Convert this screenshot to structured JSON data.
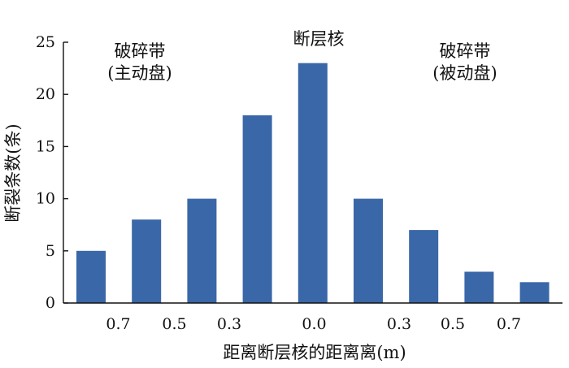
{
  "chart_data": {
    "type": "bar",
    "title": "",
    "xlabel": "距离断层核的距离离(m)",
    "ylabel": "断裂条数(条)",
    "ylim": [
      0,
      25
    ],
    "yticks": [
      0,
      5,
      10,
      15,
      20,
      25
    ],
    "x_tick_labels": [
      "0.7",
      "0.5",
      "0.3",
      "0.0",
      "0.3",
      "0.5",
      "0.7"
    ],
    "values": [
      5,
      8,
      10,
      18,
      23,
      10,
      7,
      3,
      2
    ],
    "bar_color": "#3a67a8",
    "grid": false,
    "legend": "none",
    "annotations": [
      {
        "id": "left",
        "lines": [
          "破碎带",
          "(主动盘)"
        ]
      },
      {
        "id": "center",
        "lines": [
          "断层核"
        ]
      },
      {
        "id": "right",
        "lines": [
          "破碎带",
          "(被动盘)"
        ]
      }
    ]
  }
}
